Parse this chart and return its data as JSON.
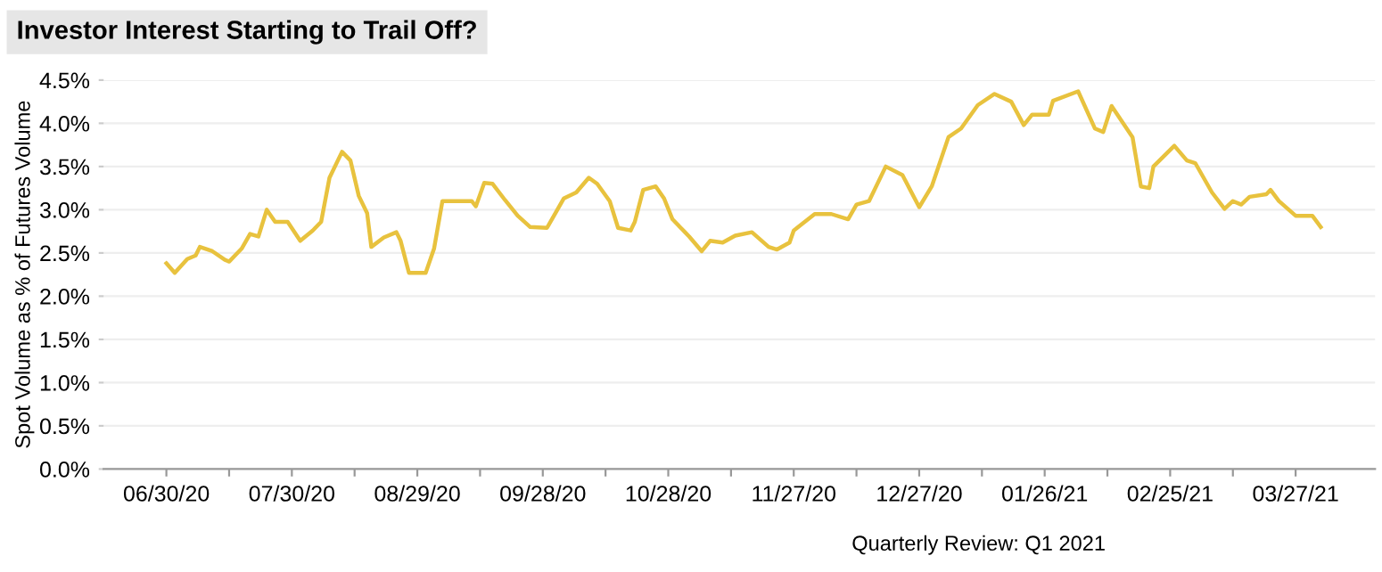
{
  "chart_data": {
    "type": "line",
    "title": "Investor Interest Starting to Trail Off?",
    "ylabel": "Spot Volume as % of Futures Volume",
    "x": [
      "2020-06-30",
      "2020-07-02",
      "2020-07-05",
      "2020-07-07",
      "2020-07-08",
      "2020-07-11",
      "2020-07-14",
      "2020-07-15",
      "2020-07-18",
      "2020-07-20",
      "2020-07-22",
      "2020-07-24",
      "2020-07-26",
      "2020-07-29",
      "2020-08-01",
      "2020-08-04",
      "2020-08-06",
      "2020-08-08",
      "2020-08-11",
      "2020-08-13",
      "2020-08-15",
      "2020-08-17",
      "2020-08-18",
      "2020-08-21",
      "2020-08-24",
      "2020-08-25",
      "2020-08-27",
      "2020-08-31",
      "2020-09-02",
      "2020-09-04",
      "2020-09-06",
      "2020-09-11",
      "2020-09-12",
      "2020-09-14",
      "2020-09-16",
      "2020-09-19",
      "2020-09-22",
      "2020-09-25",
      "2020-09-29",
      "2020-10-01",
      "2020-10-03",
      "2020-10-06",
      "2020-10-09",
      "2020-10-11",
      "2020-10-14",
      "2020-10-16",
      "2020-10-19",
      "2020-10-20",
      "2020-10-22",
      "2020-10-25",
      "2020-10-27",
      "2020-10-29",
      "2020-11-01",
      "2020-11-02",
      "2020-11-05",
      "2020-11-07",
      "2020-11-10",
      "2020-11-13",
      "2020-11-17",
      "2020-11-21",
      "2020-11-23",
      "2020-11-26",
      "2020-11-27",
      "2020-12-02",
      "2020-12-06",
      "2020-12-10",
      "2020-12-12",
      "2020-12-15",
      "2020-12-19",
      "2020-12-23",
      "2020-12-27",
      "2020-12-30",
      "2021-01-03",
      "2021-01-06",
      "2021-01-10",
      "2021-01-14",
      "2021-01-18",
      "2021-01-21",
      "2021-01-23",
      "2021-01-27",
      "2021-01-28",
      "2021-02-03",
      "2021-02-07",
      "2021-02-09",
      "2021-02-11",
      "2021-02-16",
      "2021-02-18",
      "2021-02-20",
      "2021-02-21",
      "2021-02-26",
      "2021-03-01",
      "2021-03-03",
      "2021-03-07",
      "2021-03-10",
      "2021-03-12",
      "2021-03-14",
      "2021-03-16",
      "2021-03-20",
      "2021-03-21",
      "2021-03-23",
      "2021-03-27",
      "2021-03-31",
      "2021-04-02"
    ],
    "series": [
      {
        "color": "#e8c23e",
        "values": [
          2.38,
          2.27,
          2.43,
          2.47,
          2.57,
          2.52,
          2.42,
          2.4,
          2.55,
          2.72,
          2.69,
          3.0,
          2.86,
          2.86,
          2.64,
          2.76,
          2.86,
          3.37,
          3.67,
          3.57,
          3.16,
          2.96,
          2.57,
          2.68,
          2.74,
          2.64,
          2.27,
          2.27,
          2.55,
          3.1,
          3.1,
          3.1,
          3.04,
          3.31,
          3.3,
          3.11,
          2.93,
          2.8,
          2.79,
          2.96,
          3.13,
          3.2,
          3.37,
          3.3,
          3.1,
          2.79,
          2.76,
          2.86,
          3.23,
          3.27,
          3.13,
          2.89,
          2.74,
          2.69,
          2.52,
          2.64,
          2.62,
          2.7,
          2.74,
          2.57,
          2.54,
          2.62,
          2.76,
          2.95,
          2.95,
          2.89,
          3.06,
          3.1,
          3.5,
          3.4,
          3.03,
          3.27,
          3.84,
          3.94,
          4.21,
          4.34,
          4.25,
          3.98,
          4.1,
          4.1,
          4.26,
          4.37,
          3.94,
          3.9,
          4.2,
          3.84,
          3.27,
          3.25,
          3.5,
          3.74,
          3.57,
          3.54,
          3.2,
          3.01,
          3.1,
          3.06,
          3.15,
          3.18,
          3.23,
          3.1,
          2.93,
          2.93,
          2.8
        ]
      }
    ],
    "xlim": [
      "2020-06-15",
      "2021-04-15"
    ],
    "xticks": [
      {
        "value": "2020-06-30",
        "label": "06/30/20"
      },
      {
        "value": "2020-07-15",
        "label": null
      },
      {
        "value": "2020-07-30",
        "label": "07/30/20"
      },
      {
        "value": "2020-08-14",
        "label": null
      },
      {
        "value": "2020-08-29",
        "label": "08/29/20"
      },
      {
        "value": "2020-09-13",
        "label": null
      },
      {
        "value": "2020-09-28",
        "label": "09/28/20"
      },
      {
        "value": "2020-10-13",
        "label": null
      },
      {
        "value": "2020-10-28",
        "label": "10/28/20"
      },
      {
        "value": "2020-11-12",
        "label": null
      },
      {
        "value": "2020-11-27",
        "label": "11/27/20"
      },
      {
        "value": "2020-12-12",
        "label": null
      },
      {
        "value": "2020-12-27",
        "label": "12/27/20"
      },
      {
        "value": "2021-01-11",
        "label": null
      },
      {
        "value": "2021-01-26",
        "label": "01/26/21"
      },
      {
        "value": "2021-02-10",
        "label": null
      },
      {
        "value": "2021-02-25",
        "label": "02/25/21"
      },
      {
        "value": "2021-03-12",
        "label": null
      },
      {
        "value": "2021-03-27",
        "label": "03/27/21"
      }
    ],
    "ylim": [
      0,
      4.5
    ],
    "yticks": [
      {
        "value": 0,
        "label": "0.0%"
      },
      {
        "value": 0.5,
        "label": "0.5%"
      },
      {
        "value": 1,
        "label": "1.0%"
      },
      {
        "value": 1.5,
        "label": "1.5%"
      },
      {
        "value": 2,
        "label": "2.0%"
      },
      {
        "value": 2.5,
        "label": "2.5%"
      },
      {
        "value": 3,
        "label": "3.0%"
      },
      {
        "value": 3.5,
        "label": "3.5%"
      },
      {
        "value": 4,
        "label": "4.0%"
      },
      {
        "value": 4.5,
        "label": "4.5%"
      }
    ],
    "grid": "y",
    "annotations": [
      "Quarterly Review: Q1 2021"
    ]
  }
}
